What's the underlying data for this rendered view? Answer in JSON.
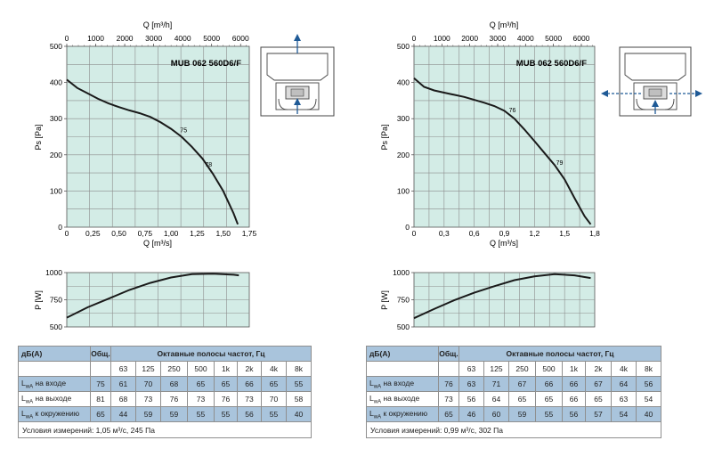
{
  "colors": {
    "plot_bg": "#d3ece6",
    "grid": "#8c8c8c",
    "curve": "#1a1a1a",
    "header_bg": "#a9c4dc",
    "arrow": "#1f5a96"
  },
  "chart_data": [
    {
      "type": "line",
      "title": "MUB 062 560D6/F",
      "xlabel": "Q [m³/s]",
      "x2label": "Q [m³/h]",
      "ylabel": "Ps [Pa]",
      "xlim": [
        0,
        1.75
      ],
      "ylim": [
        0,
        500
      ],
      "x_ticks": [
        "0",
        "0,25",
        "0,50",
        "0,75",
        "1,00",
        "1,25",
        "1,50",
        "1,75"
      ],
      "x_tick_values": [
        0,
        0.25,
        0.5,
        0.75,
        1.0,
        1.25,
        1.5,
        1.75
      ],
      "x2_ticks": [
        "0",
        "1000",
        "2000",
        "3000",
        "4000",
        "5000",
        "6000"
      ],
      "x2_tick_values": [
        0,
        1000,
        2000,
        3000,
        4000,
        5000,
        6000
      ],
      "y_ticks": [
        "0",
        "100",
        "200",
        "300",
        "400",
        "500"
      ],
      "y_tick_values": [
        0,
        100,
        200,
        300,
        400,
        500
      ],
      "grid": true,
      "series": [
        {
          "x": [
            0,
            0.1,
            0.2,
            0.3,
            0.4,
            0.5,
            0.6,
            0.7,
            0.8,
            0.9,
            1.0,
            1.1,
            1.2,
            1.3,
            1.4,
            1.5,
            1.6,
            1.64
          ],
          "y": [
            408,
            385,
            370,
            355,
            342,
            332,
            323,
            315,
            305,
            290,
            272,
            250,
            222,
            190,
            148,
            100,
            38,
            8
          ]
        }
      ],
      "annotations": [
        {
          "text": "75",
          "x": 1.12,
          "y": 262
        },
        {
          "text": "78",
          "x": 1.36,
          "y": 168
        }
      ]
    },
    {
      "type": "line",
      "ylabel": "P [W]",
      "xlim": [
        0,
        1.75
      ],
      "ylim": [
        500,
        1000
      ],
      "y_ticks": [
        "500",
        "750",
        "1000"
      ],
      "y_tick_values": [
        500,
        750,
        1000
      ],
      "grid": true,
      "series": [
        {
          "x": [
            0,
            0.2,
            0.4,
            0.6,
            0.8,
            1.0,
            1.2,
            1.4,
            1.6,
            1.65
          ],
          "y": [
            585,
            680,
            760,
            840,
            905,
            955,
            985,
            990,
            980,
            975
          ]
        }
      ]
    },
    {
      "type": "line",
      "title": "MUB 062 560D6/F",
      "xlabel": "Q [m³/s]",
      "x2label": "Q [m³/h]",
      "ylabel": "Ps [Pa]",
      "xlim": [
        0,
        1.8
      ],
      "ylim": [
        0,
        500
      ],
      "x_ticks": [
        "0",
        "0,3",
        "0,6",
        "0,9",
        "1,2",
        "1,5",
        "1,8"
      ],
      "x_tick_values": [
        0,
        0.3,
        0.6,
        0.9,
        1.2,
        1.5,
        1.8
      ],
      "x2_ticks": [
        "0",
        "1000",
        "2000",
        "3000",
        "4000",
        "5000",
        "6000"
      ],
      "x2_tick_values": [
        0,
        1000,
        2000,
        3000,
        4000,
        5000,
        6000
      ],
      "y_ticks": [
        "0",
        "100",
        "200",
        "300",
        "400",
        "500"
      ],
      "y_tick_values": [
        0,
        100,
        200,
        300,
        400,
        500
      ],
      "grid": true,
      "series": [
        {
          "x": [
            0,
            0.1,
            0.2,
            0.3,
            0.4,
            0.5,
            0.6,
            0.7,
            0.8,
            0.9,
            1.0,
            1.1,
            1.2,
            1.3,
            1.4,
            1.5,
            1.6,
            1.7,
            1.76
          ],
          "y": [
            412,
            388,
            378,
            372,
            366,
            360,
            352,
            344,
            335,
            322,
            300,
            270,
            238,
            205,
            172,
            132,
            80,
            30,
            8
          ]
        }
      ],
      "annotations": [
        {
          "text": "76",
          "x": 0.98,
          "y": 318
        },
        {
          "text": "79",
          "x": 1.45,
          "y": 172
        }
      ]
    },
    {
      "type": "line",
      "ylabel": "P [W]",
      "xlim": [
        0,
        1.8
      ],
      "ylim": [
        500,
        1000
      ],
      "y_ticks": [
        "500",
        "750",
        "1000"
      ],
      "y_tick_values": [
        500,
        750,
        1000
      ],
      "grid": true,
      "series": [
        {
          "x": [
            0,
            0.2,
            0.4,
            0.6,
            0.8,
            1.0,
            1.2,
            1.4,
            1.6,
            1.76
          ],
          "y": [
            580,
            665,
            745,
            815,
            875,
            930,
            965,
            985,
            975,
            950
          ]
        }
      ]
    }
  ],
  "tables": [
    {
      "header": {
        "db": "дБ(А)",
        "total": "Общ.",
        "bands_title": "Октавные полосы частот, Гц"
      },
      "bands": [
        "63",
        "125",
        "250",
        "500",
        "1k",
        "2k",
        "4k",
        "8k"
      ],
      "rows": [
        {
          "label_main": "L",
          "label_sub": "wA",
          "label_rest": " на входе",
          "total": "75",
          "values": [
            "61",
            "70",
            "68",
            "65",
            "65",
            "66",
            "65",
            "55"
          ]
        },
        {
          "label_main": "L",
          "label_sub": "wA",
          "label_rest": " на выходе",
          "total": "81",
          "values": [
            "68",
            "73",
            "76",
            "73",
            "76",
            "73",
            "70",
            "58"
          ]
        },
        {
          "label_main": "L",
          "label_sub": "wA",
          "label_rest": " к окружению",
          "total": "65",
          "values": [
            "44",
            "59",
            "59",
            "55",
            "55",
            "56",
            "55",
            "40"
          ]
        }
      ],
      "condition": "Условия измерений: 1,05 м³/с, 245 Па"
    },
    {
      "header": {
        "db": "дБ(А)",
        "total": "Общ.",
        "bands_title": "Октавные полосы частот, Гц"
      },
      "bands": [
        "63",
        "125",
        "250",
        "500",
        "1k",
        "2k",
        "4k",
        "8k"
      ],
      "rows": [
        {
          "label_main": "L",
          "label_sub": "wA",
          "label_rest": " на входе",
          "total": "76",
          "values": [
            "63",
            "71",
            "67",
            "66",
            "66",
            "67",
            "64",
            "56"
          ]
        },
        {
          "label_main": "L",
          "label_sub": "wA",
          "label_rest": " на выходе",
          "total": "73",
          "values": [
            "56",
            "64",
            "65",
            "65",
            "66",
            "65",
            "63",
            "54"
          ]
        },
        {
          "label_main": "L",
          "label_sub": "wA",
          "label_rest": " к окружению",
          "total": "65",
          "values": [
            "46",
            "60",
            "59",
            "55",
            "56",
            "57",
            "54",
            "40"
          ]
        }
      ],
      "condition": "Условия измерений: 0,99 м³/с, 302 Па"
    }
  ],
  "diagram_icons": [
    "fan-unit-upward-discharge-icon",
    "fan-unit-side-discharge-icon"
  ]
}
